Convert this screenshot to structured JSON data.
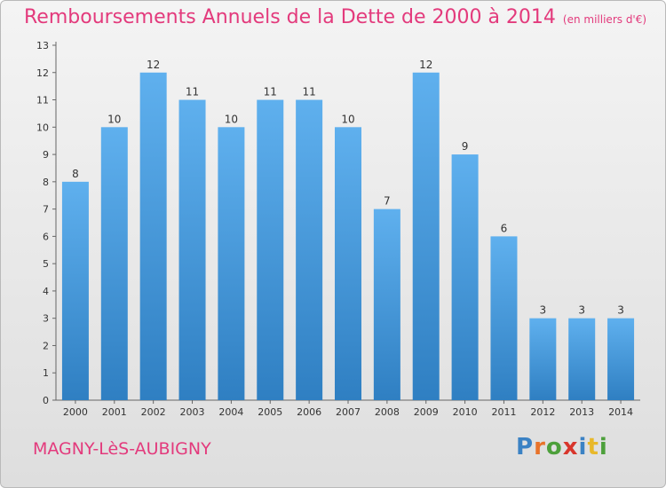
{
  "chart_data": {
    "type": "bar",
    "title": "Remboursements Annuels de la Dette de 2000 à 2014",
    "subtitle": "(en milliers d'€)",
    "categories": [
      "2000",
      "2001",
      "2002",
      "2003",
      "2004",
      "2005",
      "2006",
      "2007",
      "2008",
      "2009",
      "2010",
      "2011",
      "2012",
      "2013",
      "2014"
    ],
    "values": [
      8,
      10,
      12,
      11,
      10,
      11,
      11,
      10,
      7,
      12,
      9,
      6,
      3,
      3,
      3
    ],
    "ylim": [
      0,
      13
    ],
    "yticks": [
      0,
      1,
      2,
      3,
      4,
      5,
      6,
      7,
      8,
      9,
      10,
      11,
      12,
      13
    ],
    "grid": false,
    "bar_color": "#4da3e6"
  },
  "commune": "MAGNY-LèS-AUBIGNY",
  "logo": {
    "letters": [
      "P",
      "r",
      "o",
      "x",
      "i",
      "t",
      "i"
    ],
    "colors": [
      "#3b82c4",
      "#e8732a",
      "#4da03b",
      "#d8362c",
      "#3b82c4",
      "#e8b82a",
      "#4da03b"
    ]
  }
}
